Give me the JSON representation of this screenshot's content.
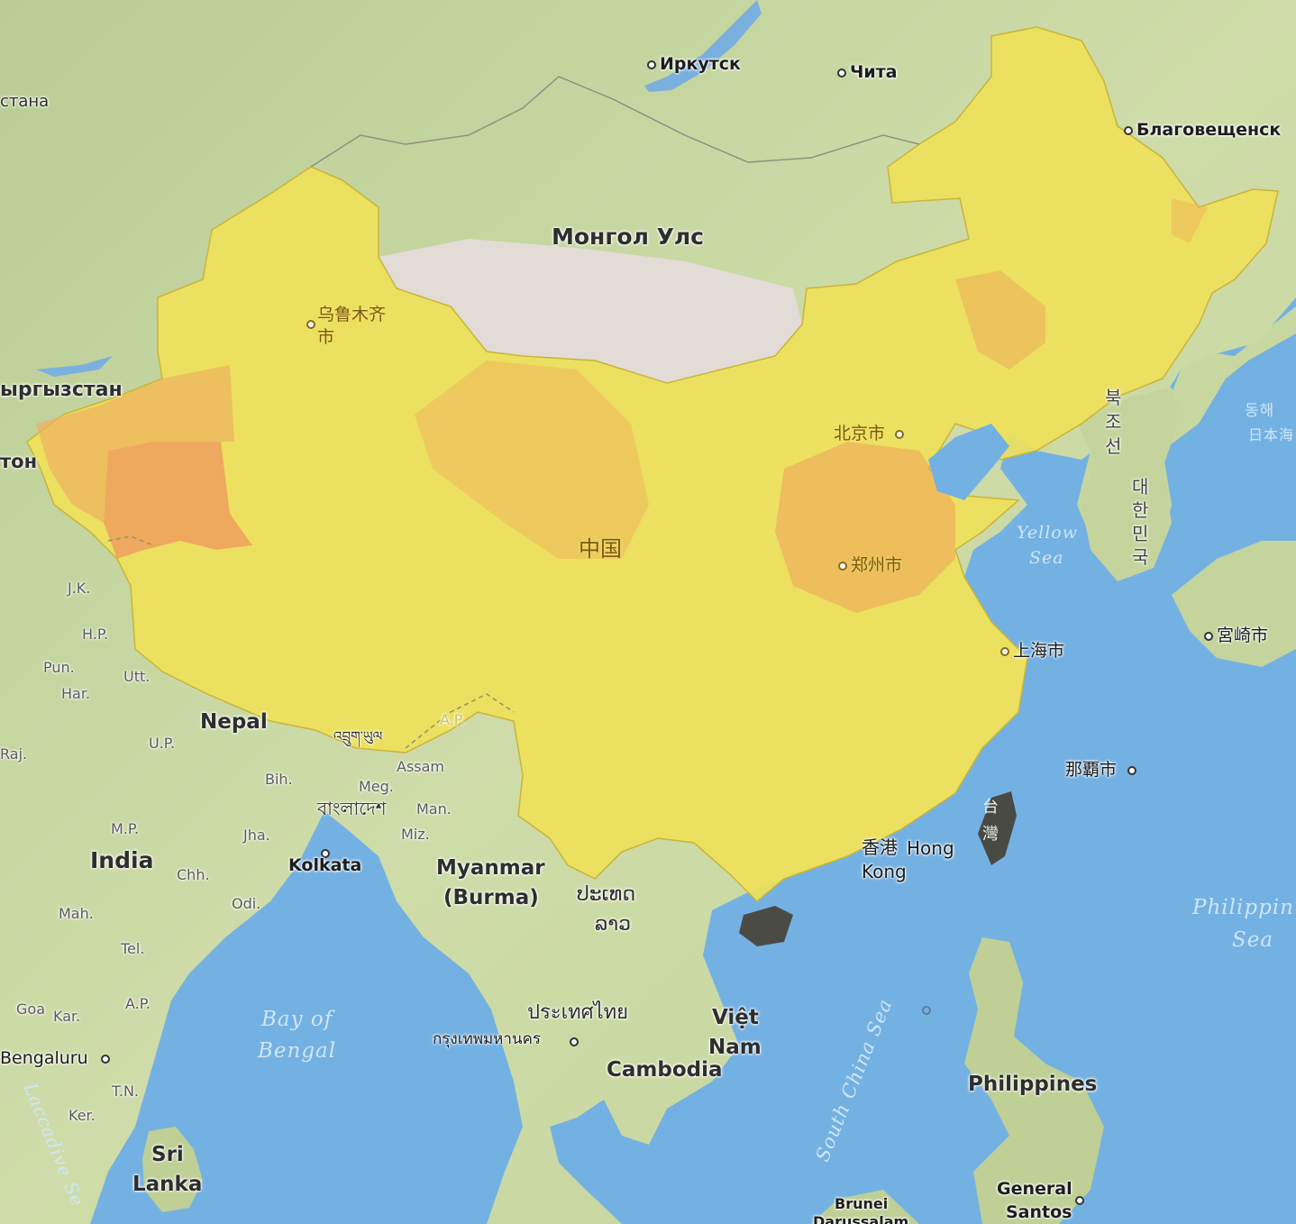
{
  "map": {
    "countries": {
      "mongolia": "Монгол Улс",
      "china": "中国",
      "nepal": "Nepal",
      "india": "India",
      "myanmar_1": "Myanmar",
      "myanmar_2": "(Burma)",
      "laos_1": "ປະເທດ",
      "laos_2": "ລາວ",
      "thailand": "ประเทศไทย",
      "vietnam_1": "Việt",
      "vietnam_2": "Nam",
      "cambodia": "Cambodia",
      "philippines": "Philippines",
      "sri_lanka_1": "Sri",
      "sri_lanka_2": "Lanka",
      "bangladesh": "বাংলাদেশ",
      "bhutan": "འབྲུག་ཡུལ",
      "north_korea": [
        "북",
        "조",
        "선"
      ],
      "south_korea": [
        "대",
        "한",
        "민",
        "국"
      ],
      "kyrgyzstan": "ыргызстан",
      "kazakhstan": "стана",
      "tajikistan": "тон",
      "taiwan_1": "台",
      "taiwan_2": "灣"
    },
    "cities": {
      "irkutsk": "Иркутск",
      "chita": "Чита",
      "blagoveshchensk": "Благовещенск",
      "urumqi_1": "乌鲁木齐",
      "urumqi_2": "市",
      "beijing": "北京市",
      "zhengzhou": "郑州市",
      "shanghai": "上海市",
      "naha": "那覇市",
      "miyazaki": "宮崎市",
      "hk_cn": "香港",
      "hk_en_1": "Hong",
      "hk_en_2": "Kong",
      "kolkata": "Kolkata",
      "bangkok": "กรุงเทพมหานคร",
      "bengaluru": "Bengaluru",
      "general_santos_1": "General",
      "general_santos_2": "Santos",
      "brunei_1": "Brunei",
      "brunei_2": "Darussalam"
    },
    "regions": {
      "jk": "J.K.",
      "hp": "H.P.",
      "pun": "Pun.",
      "utt": "Utt.",
      "har": "Har.",
      "raj": "Raj.",
      "up": "U.P.",
      "bih": "Bih.",
      "meg": "Meg.",
      "assam": "Assam",
      "ap_ne": "A.P.",
      "man": "Man.",
      "miz": "Miz.",
      "jha": "Jha.",
      "mp": "M.P.",
      "chh": "Chh.",
      "odi": "Odi.",
      "mah": "Mah.",
      "tel": "Tel.",
      "ap": "A.P.",
      "goa": "Goa",
      "kar": "Kar.",
      "tn": "T.N.",
      "ker": "Ker."
    },
    "seas": {
      "yellow_1": "Yellow",
      "yellow_2": "Sea",
      "bengal_1": "Bay of",
      "bengal_2": "Bengal",
      "philippine_1": "Philippin",
      "philippine_2": "Sea",
      "south_china": "South China Sea",
      "laccadive": "Laccadive Se",
      "east_sea_1": "동해",
      "east_sea_2": "日本海"
    },
    "colors": {
      "ocean": "#74b1e3",
      "land": "#c7d7a4",
      "choropleth_yellow": "#efe15a",
      "choropleth_orange": "#eea960",
      "mongolia_desert": "#e3dcd6"
    }
  }
}
